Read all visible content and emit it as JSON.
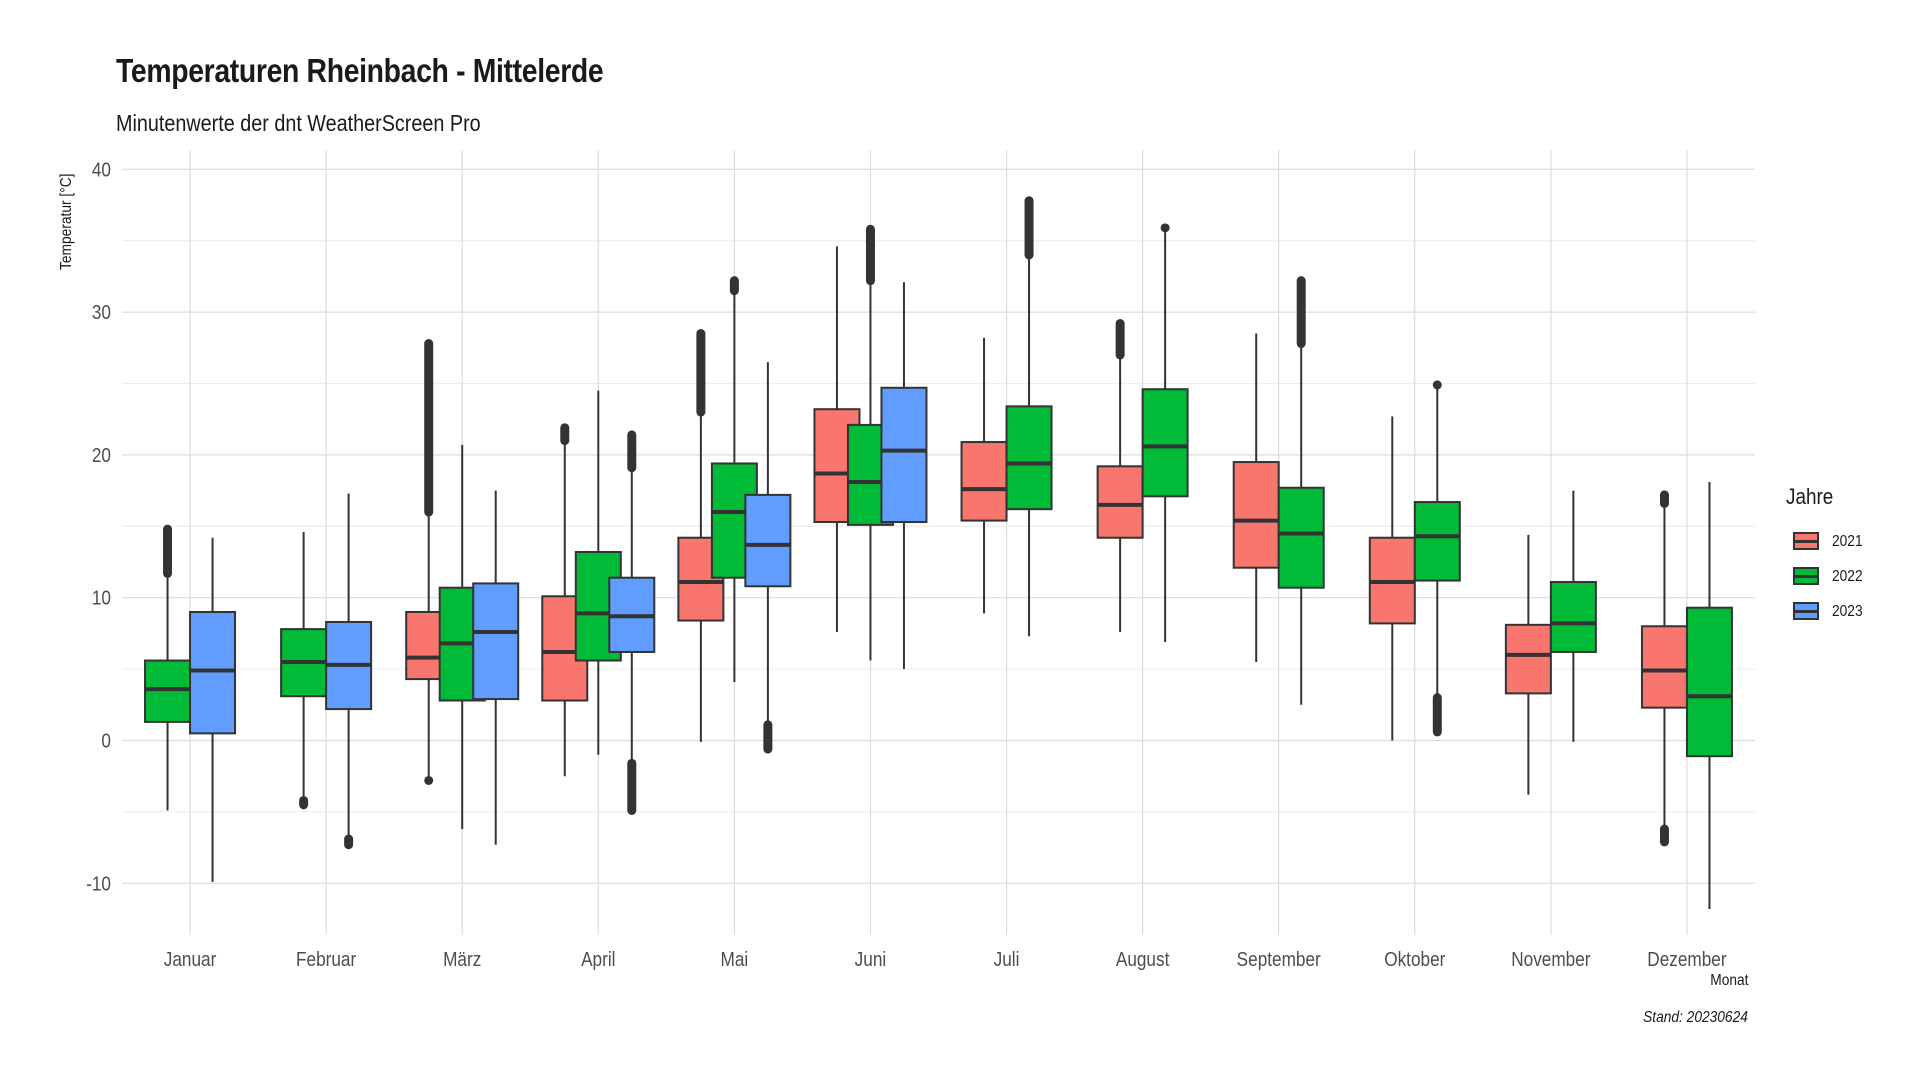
{
  "title": "Temperaturen Rheinbach - Mittelerde",
  "subtitle": "Minutenwerte der dnt WeatherScreen Pro",
  "caption": "Stand: 20230624",
  "chart_data": {
    "type": "boxplot",
    "title": "Temperaturen Rheinbach - Mittelerde",
    "subtitle": "Minutenwerte der dnt WeatherScreen Pro",
    "xlabel": "Monat",
    "ylabel": "Temperatur [°C]",
    "ylim": [
      -13.5,
      40
    ],
    "yticks": [
      -10,
      0,
      10,
      20,
      30,
      40
    ],
    "grid": true,
    "legend": {
      "title": "Jahre",
      "position": "right"
    },
    "categories": [
      "Januar",
      "Februar",
      "März",
      "April",
      "Mai",
      "Juni",
      "Juli",
      "August",
      "September",
      "Oktober",
      "November",
      "Dezember"
    ],
    "series": [
      {
        "name": "2021",
        "color": "#F8766D",
        "boxes": [
          null,
          null,
          {
            "q1": 4.3,
            "median": 5.8,
            "q3": 9.0,
            "whisker_low": -2.8,
            "whisker_high": 16.0,
            "outliers_low": [
              -2.8
            ],
            "outliers_high": [
              16.0,
              27.8
            ]
          },
          {
            "q1": 2.8,
            "median": 6.2,
            "q3": 10.1,
            "whisker_low": -2.5,
            "whisker_high": 21.0,
            "outliers_low": [],
            "outliers_high": [
              21.0,
              21.9
            ]
          },
          {
            "q1": 8.4,
            "median": 11.1,
            "q3": 14.2,
            "whisker_low": -0.1,
            "whisker_high": 23.0,
            "outliers_low": [],
            "outliers_high": [
              23.0,
              28.5
            ]
          },
          {
            "q1": 15.3,
            "median": 18.7,
            "q3": 23.2,
            "whisker_low": 7.6,
            "whisker_high": 34.6,
            "outliers_low": [],
            "outliers_high": []
          },
          {
            "q1": 15.4,
            "median": 17.6,
            "q3": 20.9,
            "whisker_low": 8.9,
            "whisker_high": 28.2,
            "outliers_low": [],
            "outliers_high": []
          },
          {
            "q1": 14.2,
            "median": 16.5,
            "q3": 19.2,
            "whisker_low": 7.6,
            "whisker_high": 27.0,
            "outliers_low": [],
            "outliers_high": [
              27.0,
              29.2
            ]
          },
          {
            "q1": 12.1,
            "median": 15.4,
            "q3": 19.5,
            "whisker_low": 5.5,
            "whisker_high": 28.5,
            "outliers_low": [],
            "outliers_high": []
          },
          {
            "q1": 8.2,
            "median": 11.1,
            "q3": 14.2,
            "whisker_low": 0.0,
            "whisker_high": 22.7,
            "outliers_low": [],
            "outliers_high": []
          },
          {
            "q1": 3.3,
            "median": 6.0,
            "q3": 8.1,
            "whisker_low": -3.8,
            "whisker_high": 14.4,
            "outliers_low": [],
            "outliers_high": []
          },
          {
            "q1": 2.3,
            "median": 4.9,
            "q3": 8.0,
            "whisker_low": -6.2,
            "whisker_high": 16.6,
            "outliers_low": [
              -6.2,
              -7.1
            ],
            "outliers_high": [
              16.6,
              17.2
            ]
          }
        ]
      },
      {
        "name": "2022",
        "color": "#00BA38",
        "boxes": [
          {
            "q1": 1.3,
            "median": 3.6,
            "q3": 5.6,
            "whisker_low": -4.9,
            "whisker_high": 11.7,
            "outliers_low": [],
            "outliers_high": [
              11.7,
              14.8
            ]
          },
          {
            "q1": 3.1,
            "median": 5.5,
            "q3": 7.8,
            "whisker_low": -4.2,
            "whisker_high": 14.6,
            "outliers_low": [
              -4.2,
              -4.5
            ],
            "outliers_high": []
          },
          {
            "q1": 2.8,
            "median": 6.8,
            "q3": 10.7,
            "whisker_low": -6.2,
            "whisker_high": 20.7,
            "outliers_low": [],
            "outliers_high": []
          },
          {
            "q1": 5.6,
            "median": 8.9,
            "q3": 13.2,
            "whisker_low": -1.0,
            "whisker_high": 24.5,
            "outliers_low": [],
            "outliers_high": []
          },
          {
            "q1": 11.4,
            "median": 16.0,
            "q3": 19.4,
            "whisker_low": 4.1,
            "whisker_high": 31.5,
            "outliers_low": [],
            "outliers_high": [
              31.5,
              32.2
            ]
          },
          {
            "q1": 15.1,
            "median": 18.1,
            "q3": 22.1,
            "whisker_low": 5.6,
            "whisker_high": 32.2,
            "outliers_low": [],
            "outliers_high": [
              32.2,
              35.8
            ]
          },
          {
            "q1": 16.2,
            "median": 19.4,
            "q3": 23.4,
            "whisker_low": 7.3,
            "whisker_high": 34.0,
            "outliers_low": [],
            "outliers_high": [
              34.0,
              37.8
            ]
          },
          {
            "q1": 17.1,
            "median": 20.6,
            "q3": 24.6,
            "whisker_low": 6.9,
            "whisker_high": 35.9,
            "outliers_low": [],
            "outliers_high": [
              35.9
            ]
          },
          {
            "q1": 10.7,
            "median": 14.5,
            "q3": 17.7,
            "whisker_low": 2.5,
            "whisker_high": 27.8,
            "outliers_low": [],
            "outliers_high": [
              27.8,
              32.2
            ]
          },
          {
            "q1": 11.2,
            "median": 14.3,
            "q3": 16.7,
            "whisker_low": 3.0,
            "whisker_high": 24.9,
            "outliers_low": [
              3.0,
              0.6
            ],
            "outliers_high": [
              24.9
            ]
          },
          {
            "q1": 6.2,
            "median": 8.2,
            "q3": 11.1,
            "whisker_low": -0.1,
            "whisker_high": 17.5,
            "outliers_low": [],
            "outliers_high": []
          },
          {
            "q1": -1.1,
            "median": 3.1,
            "q3": 9.3,
            "whisker_low": -11.8,
            "whisker_high": 18.1,
            "outliers_low": [],
            "outliers_high": []
          }
        ]
      },
      {
        "name": "2023",
        "color": "#619CFF",
        "boxes": [
          {
            "q1": 0.5,
            "median": 4.9,
            "q3": 9.0,
            "whisker_low": -9.9,
            "whisker_high": 14.2,
            "outliers_low": [],
            "outliers_high": []
          },
          {
            "q1": 2.2,
            "median": 5.3,
            "q3": 8.3,
            "whisker_low": -6.9,
            "whisker_high": 17.3,
            "outliers_low": [
              -6.9,
              -7.3
            ],
            "outliers_high": []
          },
          {
            "q1": 2.9,
            "median": 7.6,
            "q3": 11.0,
            "whisker_low": -7.3,
            "whisker_high": 17.5,
            "outliers_low": [],
            "outliers_high": []
          },
          {
            "q1": 6.2,
            "median": 8.7,
            "q3": 11.4,
            "whisker_low": -1.6,
            "whisker_high": 19.1,
            "outliers_low": [
              -1.6,
              -4.9
            ],
            "outliers_high": [
              19.1,
              21.4
            ]
          },
          {
            "q1": 10.8,
            "median": 13.7,
            "q3": 17.2,
            "whisker_low": 1.1,
            "whisker_high": 26.5,
            "outliers_low": [
              1.1,
              -0.6
            ],
            "outliers_high": []
          },
          {
            "q1": 15.3,
            "median": 20.3,
            "q3": 24.7,
            "whisker_low": 5.0,
            "whisker_high": 32.1,
            "outliers_low": [],
            "outliers_high": []
          },
          null,
          null,
          null,
          null,
          null,
          null
        ]
      }
    ]
  }
}
